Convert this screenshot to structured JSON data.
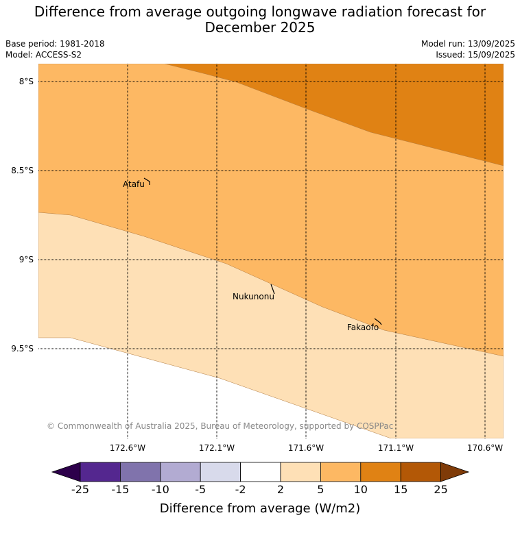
{
  "title_line1": "Difference from average outgoing longwave radiation forecast for",
  "title_line2": "December 2025",
  "base_period": "Base period: 1981-2018",
  "model": "Model: ACCESS-S2",
  "model_run": "Model run: 13/09/2025",
  "issued": "Issued: 15/09/2025",
  "copyright": "© Commonwealth of Australia 2025, Bureau of Meteorology, supported by COSPPac",
  "lat_labels": [
    "8°S",
    "8.5°S",
    "9°S",
    "9.5°S"
  ],
  "lon_labels": [
    "172.6°W",
    "172.1°W",
    "171.6°W",
    "171.1°W",
    "170.6°W"
  ],
  "places": [
    {
      "name": "Atafu"
    },
    {
      "name": "Nukunonu"
    },
    {
      "name": "Fakaofo"
    }
  ],
  "colorbar": {
    "ticks": [
      "-25",
      "-15",
      "-10",
      "-5",
      "-2",
      "2",
      "5",
      "10",
      "15",
      "25"
    ],
    "colors": [
      "#54278f",
      "#8073ac",
      "#b2abd2",
      "#d8daeb",
      "#ffffff",
      "#fee0b6",
      "#fdb863",
      "#e08214",
      "#b35806"
    ],
    "under_color": "#2d004b",
    "over_color": "#7f3b08",
    "label": "Difference from average (W/m2)"
  },
  "map_colors": {
    "band_2_5": "#fee0b6",
    "band_5_10": "#fdb863",
    "band_10_15": "#e08214",
    "below_2": "#ffffff"
  }
}
